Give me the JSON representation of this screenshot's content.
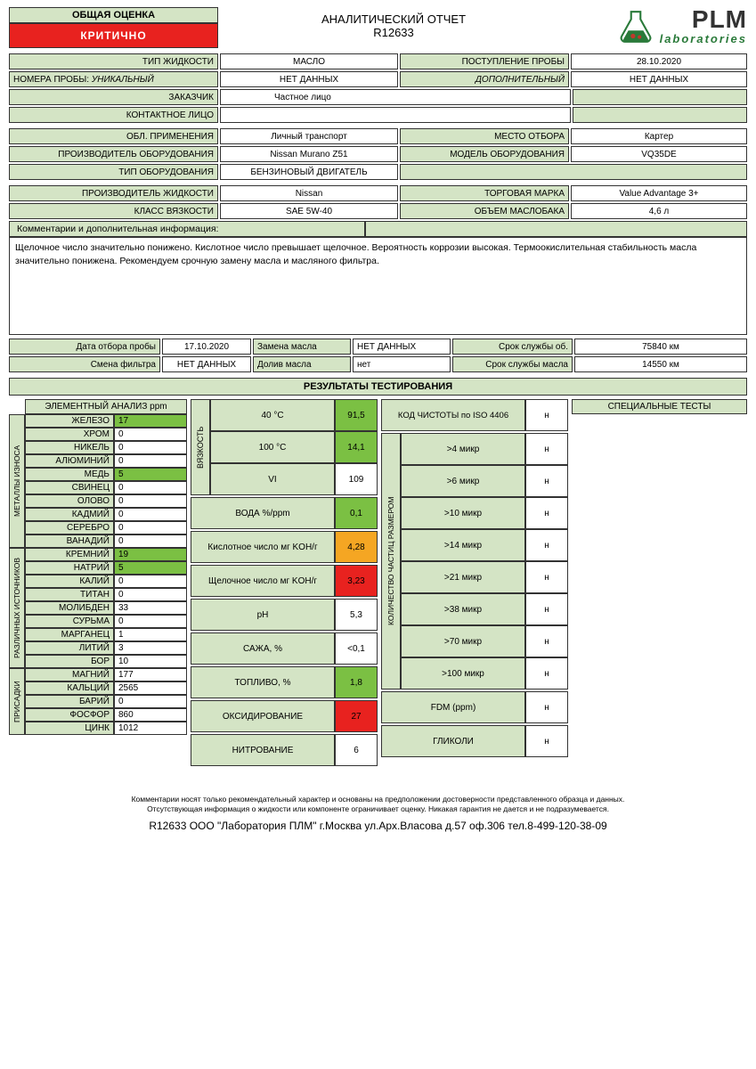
{
  "colors": {
    "panel": "#d4e4c5",
    "green": "#7bc043",
    "orange": "#f5a623",
    "red": "#e8221f",
    "border": "#333333",
    "bg": "#ffffff"
  },
  "header": {
    "rating_label": "ОБЩАЯ ОЦЕНКА",
    "rating_value": "КРИТИЧНО",
    "title": "АНАЛИТИЧЕСКИЙ ОТЧЕТ",
    "report_no": "R12633",
    "brand": "PLM",
    "brand_sub": "laboratories"
  },
  "info": {
    "fluid_type_l": "ТИП ЖИДКОСТИ",
    "fluid_type": "МАСЛО",
    "receipt_l": "ПОСТУПЛЕНИЕ ПРОБЫ",
    "receipt": "28.10.2020",
    "sample_no_l": "НОМЕРА ПРОБЫ:",
    "unique_l": "УНИКАЛЬНЫЙ",
    "unique": "НЕТ ДАННЫХ",
    "addl_l": "ДОПОЛНИТЕЛЬНЫЙ",
    "addl": "НЕТ ДАННЫХ",
    "customer_l": "ЗАКАЗЧИК",
    "customer": "Частное лицо",
    "contact_l": "КОНТАКТНОЕ ЛИЦО",
    "contact": "",
    "app_l": "ОБЛ. ПРИМЕНЕНИЯ",
    "app": "Личный транспорт",
    "sample_loc_l": "МЕСТО ОТБОРА",
    "sample_loc": "Картер",
    "mfr_l": "ПРОИЗВОДИТЕЛЬ ОБОРУДОВАНИЯ",
    "mfr": "Nissan Murano Z51",
    "model_l": "МОДЕЛЬ ОБОРУДОВАНИЯ",
    "model": "VQ35DE",
    "eqtype_l": "ТИП ОБОРУДОВАНИЯ",
    "eqtype": "БЕНЗИНОВЫЙ ДВИГАТЕЛЬ",
    "fluidmfr_l": "ПРОИЗВОДИТЕЛЬ ЖИДКОСТИ",
    "fluidmfr": "Nissan",
    "brand_l": "ТОРГОВАЯ МАРКА",
    "brand": "Value Advantage 3+",
    "visc_l": "КЛАСС ВЯЗКОСТИ",
    "visc": "SAE 5W-40",
    "tank_l": "ОБЪЕМ МАСЛОБАКА",
    "tank": "4,6 л",
    "comments_l": "Комментарии и дополнительная информация:",
    "comments": "Щелочное число значительно понижено. Кислотное число превышает щелочное.  Вероятность коррозии высокая. Термоокислительная стабильность масла значительно понижена. Рекомендуем срочную замену масла и масляного фильтра.",
    "sample_date_l": "Дата отбора пробы",
    "sample_date": "17.10.2020",
    "oil_change_l": "Замена масла",
    "oil_change": "НЕТ ДАННЫХ",
    "eq_life_l": "Срок службы об.",
    "eq_life": "75840 км",
    "filter_l": "Смена фильтра",
    "filter": "НЕТ ДАННЫХ",
    "topup_l": "Долив масла",
    "topup": "нет",
    "oil_life_l": "Срок службы масла",
    "oil_life": "14550 км"
  },
  "results_hdr": "РЕЗУЛЬТАТЫ ТЕСТИРОВАНИЯ",
  "elem_hdr": "ЭЛЕМЕНТНЫЙ АНАЛИЗ ppm",
  "groups": {
    "wear": "МЕТАЛЛЫ ИЗНОСА",
    "sources": "РАЗЛИЧНЫХ ИСТОЧНИКОВ",
    "additives": "ПРИСАДКИ"
  },
  "elements": {
    "wear": [
      {
        "l": "ЖЕЛЕЗО",
        "v": "17",
        "hl": true
      },
      {
        "l": "ХРОМ",
        "v": "0"
      },
      {
        "l": "НИКЕЛЬ",
        "v": "0"
      },
      {
        "l": "АЛЮМИНИЙ",
        "v": "0"
      },
      {
        "l": "МЕДЬ",
        "v": "5",
        "hl": true
      },
      {
        "l": "СВИНЕЦ",
        "v": "0"
      },
      {
        "l": "ОЛОВО",
        "v": "0"
      },
      {
        "l": "КАДМИЙ",
        "v": "0"
      },
      {
        "l": "СЕРЕБРО",
        "v": "0"
      },
      {
        "l": "ВАНАДИЙ",
        "v": "0"
      }
    ],
    "sources": [
      {
        "l": "КРЕМНИЙ",
        "v": "19",
        "hl": true
      },
      {
        "l": "НАТРИЙ",
        "v": "5",
        "hl": true
      },
      {
        "l": "КАЛИЙ",
        "v": "0"
      },
      {
        "l": "ТИТАН",
        "v": "0"
      },
      {
        "l": "МОЛИБДЕН",
        "v": "33"
      },
      {
        "l": "СУРЬМА",
        "v": "0"
      },
      {
        "l": "МАРГАНЕЦ",
        "v": "1"
      },
      {
        "l": "ЛИТИЙ",
        "v": "3"
      },
      {
        "l": "БОР",
        "v": "10"
      }
    ],
    "additives": [
      {
        "l": "МАГНИЙ",
        "v": "177"
      },
      {
        "l": "КАЛЬЦИЙ",
        "v": "2565"
      },
      {
        "l": "БАРИЙ",
        "v": "0"
      },
      {
        "l": "ФОСФОР",
        "v": "860"
      },
      {
        "l": "ЦИНК",
        "v": "1012"
      }
    ]
  },
  "visc": {
    "side": "ВЯЗКОСТЬ",
    "rows": [
      {
        "l": "40 °C",
        "v": "91,5",
        "c": "green"
      },
      {
        "l": "100 °C",
        "v": "14,1",
        "c": "green"
      },
      {
        "l": "VI",
        "v": "109",
        "c": ""
      }
    ]
  },
  "tests": [
    {
      "l": "ВОДА %/ppm",
      "v": "0,1",
      "c": "green"
    },
    {
      "l": "Кислотное число мг KOH/г",
      "v": "4,28",
      "c": "orange"
    },
    {
      "l": "Щелочное число мг KOH/г",
      "v": "3,23",
      "c": "red"
    },
    {
      "l": "pH",
      "v": "5,3",
      "c": ""
    },
    {
      "l": "САЖА, %",
      "v": "<0,1",
      "c": ""
    },
    {
      "l": "ТОПЛИВО, %",
      "v": "1,8",
      "c": "green"
    },
    {
      "l": "ОКСИДИРОВАНИЕ",
      "v": "27",
      "c": "red"
    },
    {
      "l": "НИТРОВАНИЕ",
      "v": "6",
      "c": ""
    }
  ],
  "iso": {
    "hdr": "КОД ЧИСТОТЫ по ISO 4406",
    "hdr_v": "н",
    "side": "КОЛИЧЕСТВО ЧАСТИЦ РАЗМЕРОМ",
    "rows": [
      {
        "l": ">4 микр",
        "v": "н"
      },
      {
        "l": ">6 микр",
        "v": "н"
      },
      {
        "l": ">10 микр",
        "v": "н"
      },
      {
        "l": ">14 микр",
        "v": "н"
      },
      {
        "l": ">21 микр",
        "v": "н"
      },
      {
        "l": ">38 микр",
        "v": "н"
      },
      {
        "l": ">70 микр",
        "v": "н"
      },
      {
        "l": ">100 микр",
        "v": "н"
      }
    ],
    "fdm_l": "FDM (ppm)",
    "fdm_v": "н",
    "gly_l": "ГЛИКОЛИ",
    "gly_v": "н"
  },
  "special_hdr": "СПЕЦИАЛЬНЫЕ ТЕСТЫ",
  "footer": {
    "line1": "Комментарии носят только рекомендательный характер и основаны на предположении достоверности представленного образца и данных.",
    "line2": "Отсутствующая информация о жидкости или компоненте ограничивает оценку. Никакая гарантия не дается и не подразумевается.",
    "contact": "R12633 ООО \"Лаборатория ПЛМ\" г.Москва ул.Арх.Власова д.57 оф.306 тел.8-499-120-38-09"
  }
}
